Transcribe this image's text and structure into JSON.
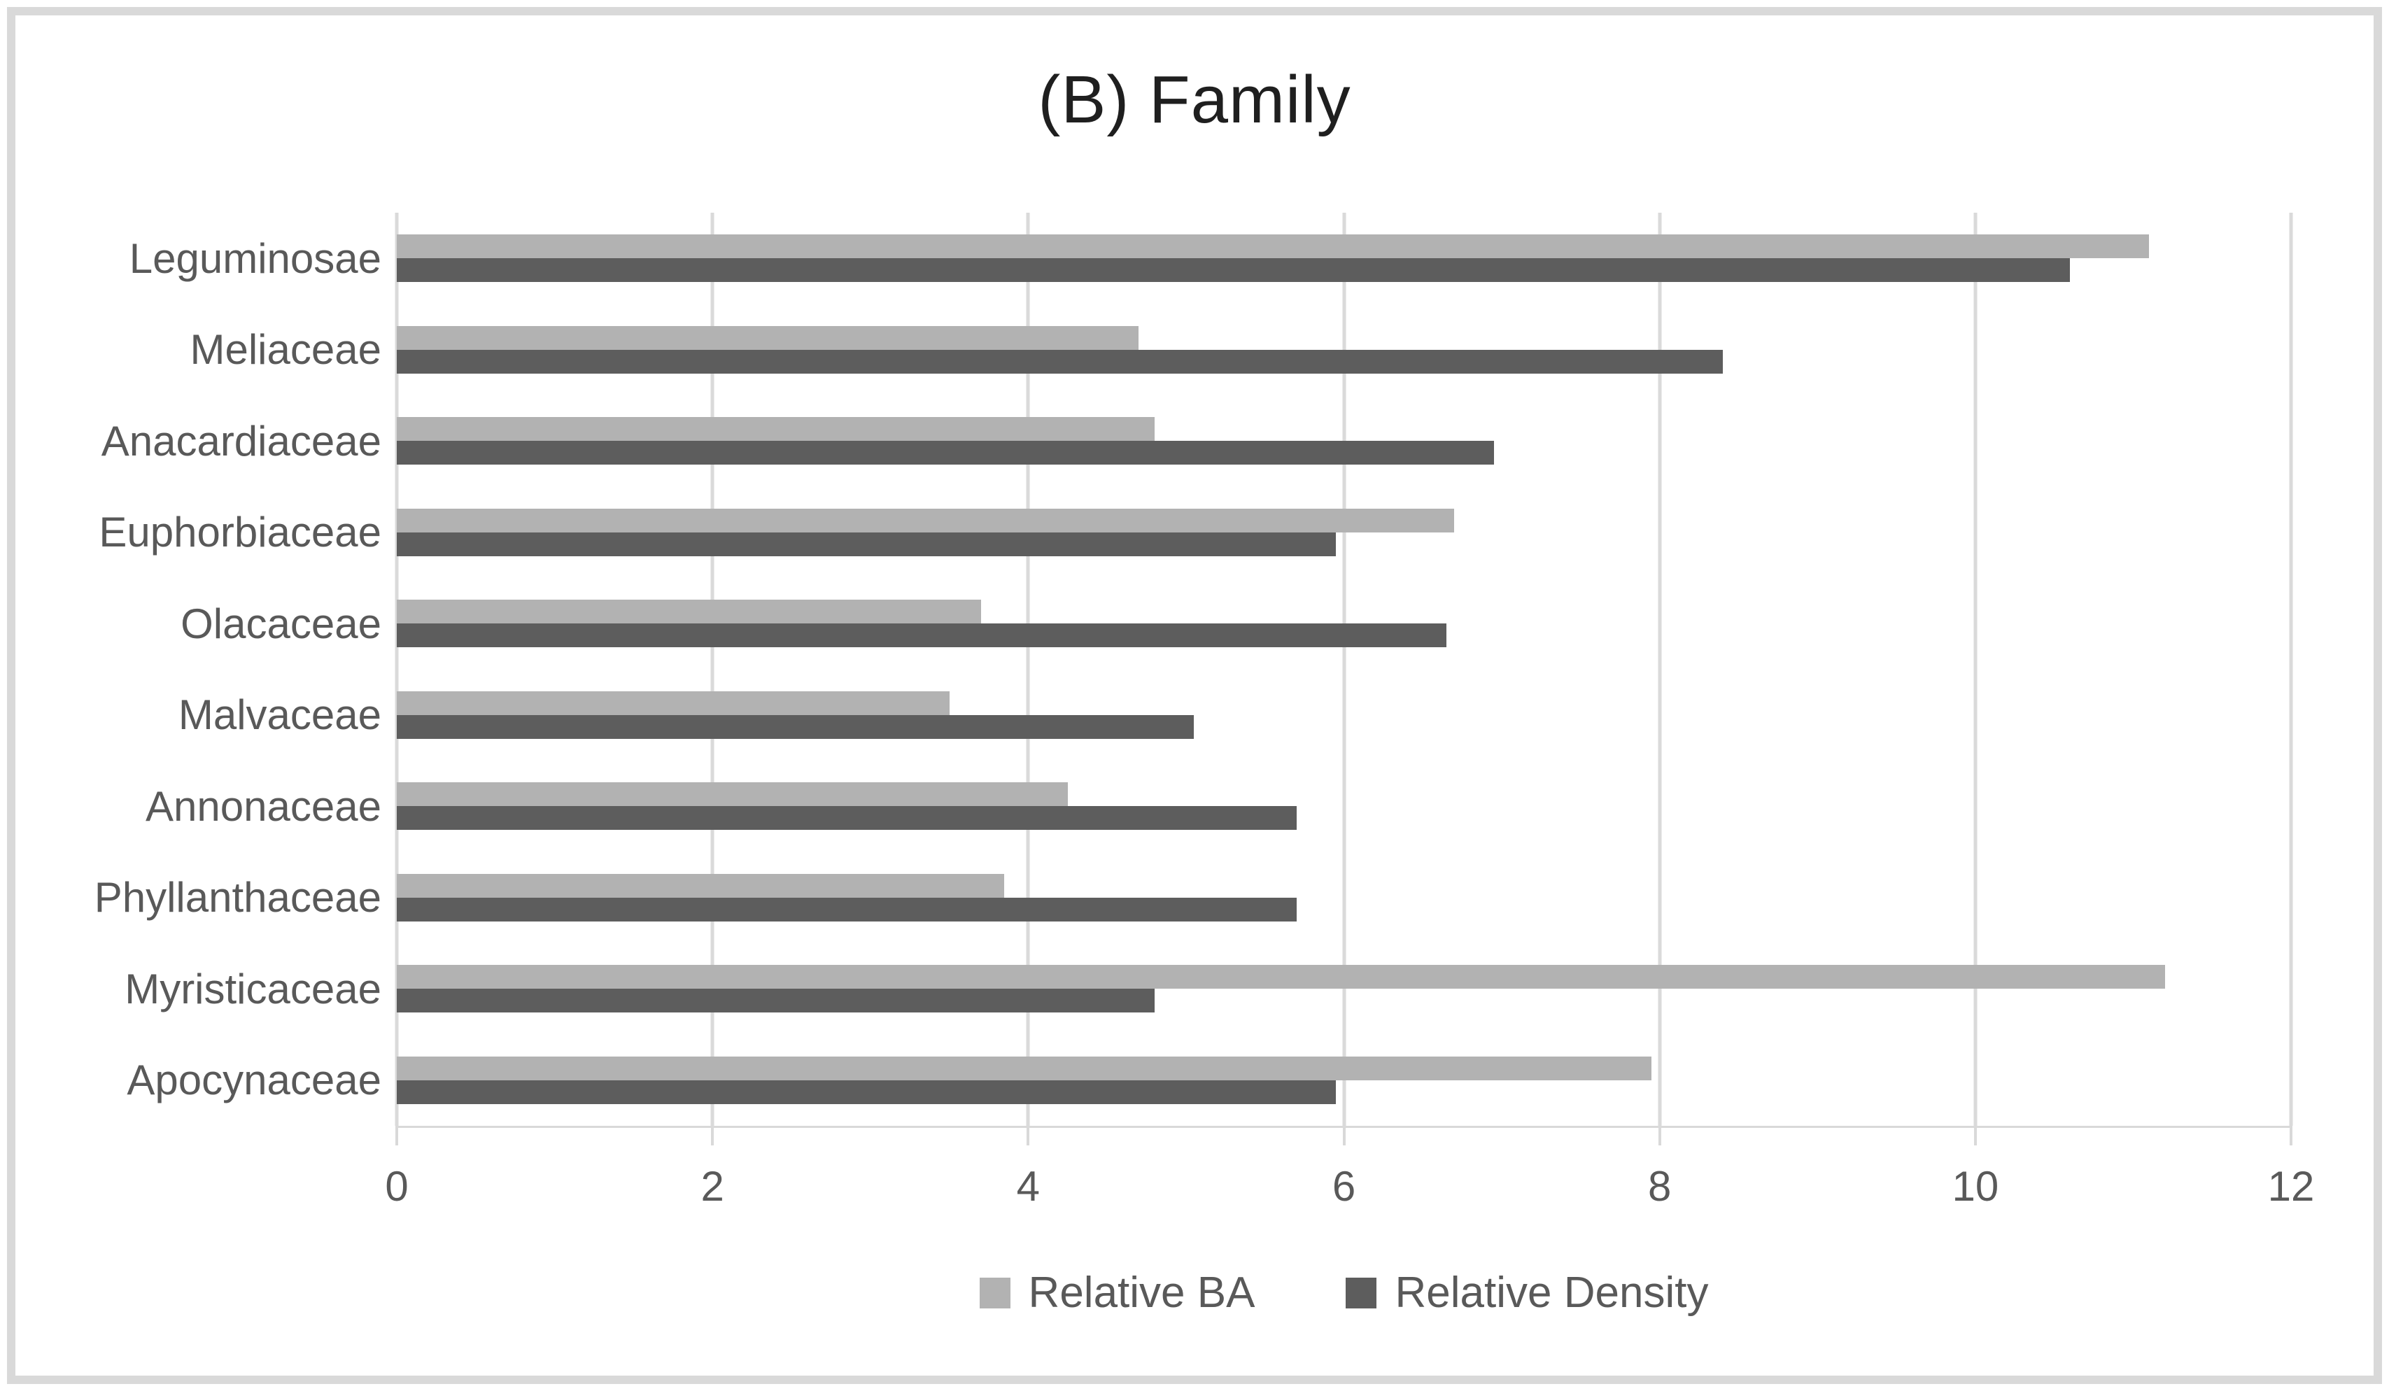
{
  "chart_data": {
    "type": "bar",
    "orientation": "horizontal",
    "title": "(B) Family",
    "categories": [
      "Leguminosae",
      "Meliaceae",
      "Anacardiaceae",
      "Euphorbiaceae",
      "Olacaceae",
      "Malvaceae",
      "Annonaceae",
      "Phyllanthaceae",
      "Myristicaceae",
      "Apocynaceae"
    ],
    "series": [
      {
        "name": "Relative BA",
        "color": "#b2b2b2",
        "values": [
          11.1,
          4.7,
          4.8,
          6.7,
          3.7,
          3.5,
          4.25,
          3.85,
          11.2,
          7.95
        ]
      },
      {
        "name": "Relative Density",
        "color": "#5d5d5d",
        "values": [
          10.6,
          8.4,
          6.95,
          5.95,
          6.65,
          5.05,
          5.7,
          5.7,
          4.8,
          5.95
        ]
      }
    ],
    "x_ticks": [
      0,
      2,
      4,
      6,
      8,
      10,
      12
    ],
    "xlim": [
      0,
      12
    ],
    "grid": true,
    "legend_position": "bottom"
  },
  "colors": {
    "gridline": "#dadada",
    "axis_text": "#595959",
    "title_text": "#1f1f1f",
    "frame_border": "#d9d9d9",
    "background": "#ffffff"
  }
}
